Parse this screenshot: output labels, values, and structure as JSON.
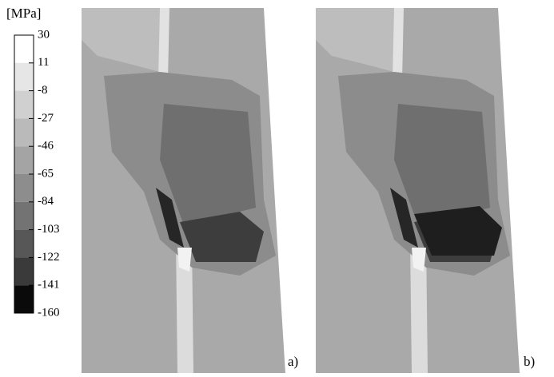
{
  "legend": {
    "unit": "[MPa]",
    "levels": [
      30,
      11,
      -8,
      -27,
      -46,
      -65,
      -84,
      -103,
      -122,
      -141,
      -160
    ],
    "colors": [
      "#ffffff",
      "#e6e6e6",
      "#d0d0d0",
      "#bababa",
      "#a4a4a4",
      "#8d8d8d",
      "#737373",
      "#575757",
      "#3a3a3a",
      "#0a0a0a"
    ]
  },
  "panels": [
    {
      "label": "a)"
    },
    {
      "label": "b)"
    }
  ]
}
